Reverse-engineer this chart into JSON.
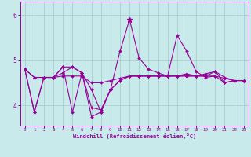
{
  "xlabel": "Windchill (Refroidissement éolien,°C)",
  "xlim": [
    -0.5,
    23.5
  ],
  "ylim": [
    3.55,
    6.3
  ],
  "yticks": [
    4,
    5,
    6
  ],
  "xticks": [
    0,
    1,
    2,
    3,
    4,
    5,
    6,
    7,
    8,
    9,
    10,
    11,
    12,
    13,
    14,
    15,
    16,
    17,
    18,
    19,
    20,
    21,
    22,
    23
  ],
  "bg_color": "#c8eaea",
  "line_color": "#990099",
  "grid_color": "#a0c8c8",
  "series": [
    [
      4.8,
      3.85,
      4.62,
      4.62,
      4.72,
      4.85,
      4.72,
      3.75,
      3.85,
      4.35,
      5.2,
      5.9,
      5.05,
      4.8,
      4.72,
      4.65,
      5.55,
      5.2,
      4.75,
      4.62,
      4.65,
      4.5,
      4.55,
      4.55
    ],
    [
      4.8,
      4.62,
      4.62,
      4.62,
      4.65,
      4.65,
      4.65,
      4.5,
      4.5,
      4.55,
      4.6,
      4.65,
      4.65,
      4.65,
      4.65,
      4.65,
      4.65,
      4.65,
      4.65,
      4.65,
      4.65,
      4.6,
      4.55,
      4.55
    ],
    [
      4.8,
      4.62,
      4.62,
      4.62,
      4.85,
      4.85,
      4.72,
      3.95,
      3.9,
      4.35,
      4.55,
      4.65,
      4.65,
      4.65,
      4.65,
      4.65,
      4.65,
      4.7,
      4.65,
      4.7,
      4.75,
      4.62,
      4.55,
      4.55
    ],
    [
      4.8,
      3.85,
      4.62,
      4.62,
      4.85,
      3.85,
      4.72,
      4.35,
      3.85,
      4.35,
      4.55,
      4.65,
      4.65,
      4.65,
      4.65,
      4.65,
      4.65,
      4.65,
      4.65,
      4.65,
      4.75,
      4.5,
      4.55,
      4.55
    ]
  ]
}
